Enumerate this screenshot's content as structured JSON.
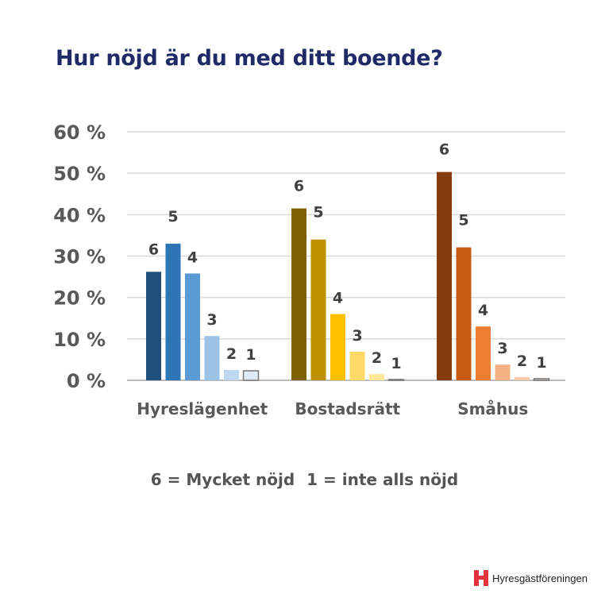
{
  "title": "Hur nöjd är du med ditt boende?",
  "note": {
    "left": "6 = Mycket nöjd",
    "right": "1 = inte alls nöjd"
  },
  "logo": {
    "text": "Hyresgästföreningen",
    "color": "#e8313f"
  },
  "chart_data": {
    "type": "bar",
    "title": "Hur nöjd är du med ditt boende?",
    "xlabel": "",
    "ylabel": "",
    "ylim": [
      0,
      60
    ],
    "yticks": [
      0,
      10,
      20,
      30,
      40,
      50,
      60
    ],
    "ytick_labels": [
      "0 %",
      "10 %",
      "20 %",
      "30 %",
      "40 %",
      "50 %",
      "60 %"
    ],
    "grid": true,
    "bar_labels": [
      "6",
      "5",
      "4",
      "3",
      "2",
      "1"
    ],
    "groups": [
      {
        "category": "Hyreslägenhet",
        "values": [
          26.2,
          33.0,
          25.8,
          10.7,
          2.5,
          2.3
        ],
        "colors": [
          "#1f4e79",
          "#2e75b6",
          "#5b9bd5",
          "#9dc3e6",
          "#bdd7ee",
          "#deebf7"
        ]
      },
      {
        "category": "Bostadsrätt",
        "values": [
          41.5,
          34.0,
          16.0,
          6.9,
          1.5,
          0.2
        ],
        "colors": [
          "#7f6000",
          "#bf9000",
          "#ffc000",
          "#ffd966",
          "#ffe699",
          "#fff2cc"
        ]
      },
      {
        "category": "Småhus",
        "values": [
          50.3,
          32.1,
          13.0,
          3.8,
          0.8,
          0.4
        ],
        "colors": [
          "#843c0c",
          "#c55a11",
          "#ed7d31",
          "#f4b183",
          "#f8cbad",
          "#fbe5d6"
        ]
      }
    ]
  }
}
